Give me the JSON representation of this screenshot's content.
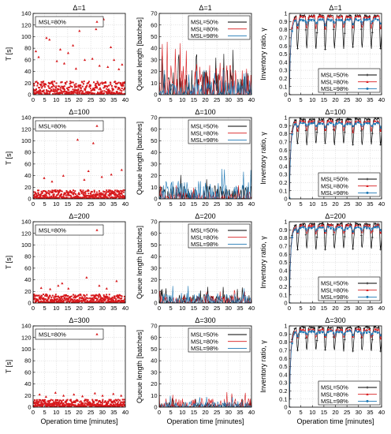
{
  "colors": {
    "msl50": "#000000",
    "msl80": "#d7191c",
    "msl98": "#1f78b4"
  },
  "chart_data": [
    {
      "type": "scatter",
      "title": "Δ=1",
      "xlabel": "",
      "ylabel": "T [s]",
      "xlim": [
        0,
        40
      ],
      "ylim": [
        0,
        140
      ],
      "xticks": [
        "0",
        "5",
        "10",
        "15",
        "20",
        "25",
        "30",
        "35",
        "40"
      ],
      "yticks": [
        "0",
        "20",
        "40",
        "60",
        "80",
        "100",
        "120",
        "140"
      ],
      "legend": [
        "MSL=80%"
      ],
      "legend_position": "top-left",
      "grid": true,
      "points_dense_max": 22,
      "outliers": [
        [
          1.2,
          75
        ],
        [
          2.4,
          65
        ],
        [
          3.4,
          123
        ],
        [
          5.8,
          98
        ],
        [
          7.1,
          95
        ],
        [
          8.6,
          122
        ],
        [
          10.3,
          58
        ],
        [
          11.8,
          78
        ],
        [
          13.5,
          54
        ],
        [
          15.2,
          72
        ],
        [
          17.3,
          85
        ],
        [
          18.6,
          45
        ],
        [
          20.1,
          110
        ],
        [
          22.4,
          60
        ],
        [
          24.0,
          120
        ],
        [
          25.7,
          62
        ],
        [
          27.3,
          113
        ],
        [
          28.8,
          50
        ],
        [
          30.6,
          130
        ],
        [
          32.4,
          48
        ],
        [
          33.7,
          82
        ],
        [
          35.1,
          60
        ],
        [
          37.2,
          44
        ],
        [
          38.6,
          52
        ]
      ]
    },
    {
      "type": "line",
      "title": "Δ=1",
      "xlabel": "",
      "ylabel": "Queue length [batches]",
      "xlim": [
        0,
        40
      ],
      "ylim": [
        0,
        70
      ],
      "xticks": [
        "0",
        "5",
        "10",
        "15",
        "20",
        "25",
        "30",
        "35",
        "40"
      ],
      "yticks": [
        "0",
        "10",
        "20",
        "30",
        "40",
        "50",
        "60",
        "70"
      ],
      "legend": [
        "MSL=50%",
        "MSL=80%",
        "MSL=98%"
      ],
      "legend_position": "top-right",
      "grid": true,
      "series": [
        {
          "name": "MSL=50%",
          "max": 40
        },
        {
          "name": "MSL=80%",
          "max": 50
        },
        {
          "name": "MSL=98%",
          "max": 22
        }
      ]
    },
    {
      "type": "line",
      "title": "Δ=1",
      "xlabel": "",
      "ylabel": "Inventory ratio, γ",
      "xlim": [
        0,
        40
      ],
      "ylim": [
        0,
        1
      ],
      "xticks": [
        "0",
        "5",
        "10",
        "15",
        "20",
        "25",
        "30",
        "35",
        "40"
      ],
      "yticks": [
        "0",
        "0.1",
        "0.2",
        "0.3",
        "0.4",
        "0.5",
        "0.6",
        "0.7",
        "0.8",
        "0.9",
        "1"
      ],
      "legend": [
        "MSL=50%",
        "MSL=80%",
        "MSL=98%"
      ],
      "legend_position": "bottom-right",
      "grid": true,
      "series": [
        {
          "name": "MSL=50%",
          "high": 0.97,
          "dip": 0.52
        },
        {
          "name": "MSL=80%",
          "high": 0.96,
          "dip": 0.8
        },
        {
          "name": "MSL=98%",
          "high": 0.92,
          "dip": 0.86
        }
      ]
    },
    {
      "type": "scatter",
      "title": "Δ=100",
      "xlabel": "",
      "ylabel": "T [s]",
      "xlim": [
        0,
        40
      ],
      "ylim": [
        0,
        140
      ],
      "xticks": [
        "0",
        "5",
        "10",
        "15",
        "20",
        "25",
        "30",
        "35",
        "40"
      ],
      "yticks": [
        "0",
        "20",
        "40",
        "60",
        "80",
        "100",
        "120",
        "140"
      ],
      "legend": [
        "MSL=80%"
      ],
      "legend_position": "top-left",
      "grid": true,
      "points_dense_max": 14,
      "outliers": [
        [
          4.8,
          36
        ],
        [
          8.2,
          30
        ],
        [
          13.1,
          40
        ],
        [
          19.3,
          102
        ],
        [
          22.2,
          33
        ],
        [
          24.0,
          48
        ],
        [
          26.1,
          96
        ],
        [
          29.8,
          38
        ],
        [
          33.9,
          42
        ],
        [
          38.4,
          50
        ]
      ]
    },
    {
      "type": "line",
      "title": "Δ=100",
      "xlabel": "",
      "ylabel": "Queue length [batches]",
      "xlim": [
        0,
        40
      ],
      "ylim": [
        0,
        70
      ],
      "xticks": [
        "0",
        "5",
        "10",
        "15",
        "20",
        "25",
        "30",
        "35",
        "40"
      ],
      "yticks": [
        "0",
        "10",
        "20",
        "30",
        "40",
        "50",
        "60",
        "70"
      ],
      "legend": [
        "MSL=50%",
        "MSL=80%",
        "MSL=98%"
      ],
      "legend_position": "top-right",
      "grid": true,
      "series": [
        {
          "name": "MSL=50%",
          "max": 22
        },
        {
          "name": "MSL=80%",
          "max": 12
        },
        {
          "name": "MSL=98%",
          "max": 28
        }
      ]
    },
    {
      "type": "line",
      "title": "Δ=100",
      "xlabel": "",
      "ylabel": "Inventory ratio, γ",
      "xlim": [
        0,
        40
      ],
      "ylim": [
        0,
        1
      ],
      "xticks": [
        "0",
        "5",
        "10",
        "15",
        "20",
        "25",
        "30",
        "35",
        "40"
      ],
      "yticks": [
        "0",
        "0.1",
        "0.2",
        "0.3",
        "0.4",
        "0.5",
        "0.6",
        "0.7",
        "0.8",
        "0.9",
        "1"
      ],
      "legend": [
        "MSL=50%",
        "MSL=80%",
        "MSL=98%"
      ],
      "legend_position": "bottom-right",
      "grid": true,
      "series": [
        {
          "name": "MSL=50%",
          "high": 0.98,
          "dip": 0.63
        },
        {
          "name": "MSL=80%",
          "high": 0.95,
          "dip": 0.82
        },
        {
          "name": "MSL=98%",
          "high": 0.93,
          "dip": 0.88
        }
      ]
    },
    {
      "type": "scatter",
      "title": "Δ=200",
      "xlabel": "",
      "ylabel": "T [s]",
      "xlim": [
        0,
        40
      ],
      "ylim": [
        0,
        140
      ],
      "xticks": [
        "0",
        "5",
        "10",
        "15",
        "20",
        "25",
        "30",
        "35",
        "40"
      ],
      "yticks": [
        "0",
        "20",
        "40",
        "60",
        "80",
        "100",
        "120",
        "140"
      ],
      "legend": [
        "MSL=80%"
      ],
      "legend_position": "top-left",
      "grid": true,
      "points_dense_max": 14,
      "outliers": [
        [
          3.5,
          26
        ],
        [
          7.4,
          24
        ],
        [
          10.9,
          30
        ],
        [
          12.6,
          34
        ],
        [
          15.3,
          25
        ],
        [
          23.2,
          44
        ],
        [
          28.7,
          30
        ],
        [
          31.9,
          25
        ],
        [
          36.2,
          38
        ]
      ]
    },
    {
      "type": "line",
      "title": "Δ=200",
      "xlabel": "",
      "ylabel": "Queue length [batches]",
      "xlim": [
        0,
        40
      ],
      "ylim": [
        0,
        70
      ],
      "xticks": [
        "0",
        "5",
        "10",
        "15",
        "20",
        "25",
        "30",
        "35",
        "40"
      ],
      "yticks": [
        "0",
        "10",
        "20",
        "30",
        "40",
        "50",
        "60",
        "70"
      ],
      "legend": [
        "MSL=50%",
        "MSL=80%",
        "MSL=98%"
      ],
      "legend_position": "top-right",
      "grid": true,
      "series": [
        {
          "name": "MSL=50%",
          "max": 14
        },
        {
          "name": "MSL=80%",
          "max": 12
        },
        {
          "name": "MSL=98%",
          "max": 16
        }
      ]
    },
    {
      "type": "line",
      "title": "Δ=200",
      "xlabel": "",
      "ylabel": "Inventory ratio, γ",
      "xlim": [
        0,
        40
      ],
      "ylim": [
        0,
        1
      ],
      "xticks": [
        "0",
        "5",
        "10",
        "15",
        "20",
        "25",
        "30",
        "35",
        "40"
      ],
      "yticks": [
        "0",
        "0.1",
        "0.2",
        "0.3",
        "0.4",
        "0.5",
        "0.6",
        "0.7",
        "0.8",
        "0.9",
        "1"
      ],
      "legend": [
        "MSL=50%",
        "MSL=80%",
        "MSL=98%"
      ],
      "legend_position": "bottom-right",
      "grid": true,
      "series": [
        {
          "name": "MSL=50%",
          "high": 0.97,
          "dip": 0.63
        },
        {
          "name": "MSL=80%",
          "high": 0.95,
          "dip": 0.84
        },
        {
          "name": "MSL=98%",
          "high": 0.93,
          "dip": 0.88
        }
      ]
    },
    {
      "type": "scatter",
      "title": "Δ=300",
      "xlabel": "Operation time [minutes]",
      "ylabel": "T [s]",
      "xlim": [
        0,
        40
      ],
      "ylim": [
        0,
        140
      ],
      "xticks": [
        "0",
        "5",
        "10",
        "15",
        "20",
        "25",
        "30",
        "35",
        "40"
      ],
      "yticks": [
        "0",
        "20",
        "40",
        "60",
        "80",
        "100",
        "120",
        "140"
      ],
      "legend": [
        "MSL=80%"
      ],
      "legend_position": "top-left",
      "grid": true,
      "points_dense_max": 12,
      "outliers": [
        [
          2.8,
          22
        ],
        [
          5.6,
          18
        ],
        [
          9.7,
          25
        ],
        [
          13.2,
          20
        ],
        [
          17.7,
          22
        ],
        [
          21.4,
          19
        ],
        [
          26.8,
          24
        ],
        [
          30.1,
          20
        ],
        [
          34.8,
          23
        ],
        [
          38.2,
          20
        ]
      ]
    },
    {
      "type": "line",
      "title": "Δ=300",
      "xlabel": "Operation time [minutes]",
      "ylabel": "Queue length [batches]",
      "xlim": [
        0,
        40
      ],
      "ylim": [
        0,
        70
      ],
      "xticks": [
        "0",
        "5",
        "10",
        "15",
        "20",
        "25",
        "30",
        "35",
        "40"
      ],
      "yticks": [
        "0",
        "10",
        "20",
        "30",
        "40",
        "50",
        "60",
        "70"
      ],
      "legend": [
        "MSL=50%",
        "MSL=80%",
        "MSL=98%"
      ],
      "legend_position": "top-right",
      "grid": true,
      "series": [
        {
          "name": "MSL=50%",
          "max": 8
        },
        {
          "name": "MSL=80%",
          "max": 14
        },
        {
          "name": "MSL=98%",
          "max": 10
        }
      ]
    },
    {
      "type": "line",
      "title": "Δ=300",
      "xlabel": "Operation time [minutes]",
      "ylabel": "Inventory ratio, γ",
      "xlim": [
        0,
        40
      ],
      "ylim": [
        0,
        1
      ],
      "xticks": [
        "0",
        "5",
        "10",
        "15",
        "20",
        "25",
        "30",
        "35",
        "40"
      ],
      "yticks": [
        "0",
        "0.1",
        "0.2",
        "0.3",
        "0.4",
        "0.5",
        "0.6",
        "0.7",
        "0.8",
        "0.9",
        "1"
      ],
      "legend": [
        "MSL=50%",
        "MSL=80%",
        "MSL=98%"
      ],
      "legend_position": "bottom-right",
      "grid": true,
      "series": [
        {
          "name": "MSL=50%",
          "high": 0.98,
          "dip": 0.66
        },
        {
          "name": "MSL=80%",
          "high": 0.95,
          "dip": 0.84
        },
        {
          "name": "MSL=98%",
          "high": 0.93,
          "dip": 0.88
        }
      ]
    }
  ]
}
